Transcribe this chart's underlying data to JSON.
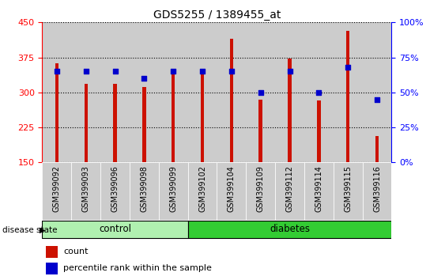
{
  "title": "GDS5255 / 1389455_at",
  "samples": [
    "GSM399092",
    "GSM399093",
    "GSM399096",
    "GSM399098",
    "GSM399099",
    "GSM399102",
    "GSM399104",
    "GSM399109",
    "GSM399112",
    "GSM399114",
    "GSM399115",
    "GSM399116"
  ],
  "counts": [
    362,
    318,
    318,
    312,
    343,
    348,
    415,
    285,
    372,
    282,
    432,
    207
  ],
  "percentiles": [
    65,
    65,
    65,
    60,
    65,
    65,
    65,
    50,
    65,
    50,
    68,
    45
  ],
  "ylim_left": [
    150,
    450
  ],
  "ylim_right": [
    0,
    100
  ],
  "yticks_left": [
    150,
    225,
    300,
    375,
    450
  ],
  "yticks_right": [
    0,
    25,
    50,
    75,
    100
  ],
  "bar_color": "#cc1100",
  "dot_color": "#0000cc",
  "bar_width": 0.12,
  "control_n": 5,
  "diabetes_n": 7,
  "control_color": "#b0f0b0",
  "diabetes_color": "#33cc33",
  "col_bg_color": "#cccccc",
  "plot_bg": "#ffffff",
  "legend_count_label": "count",
  "legend_pct_label": "percentile rank within the sample",
  "disease_state_label": "disease state",
  "control_label": "control",
  "diabetes_label": "diabetes"
}
